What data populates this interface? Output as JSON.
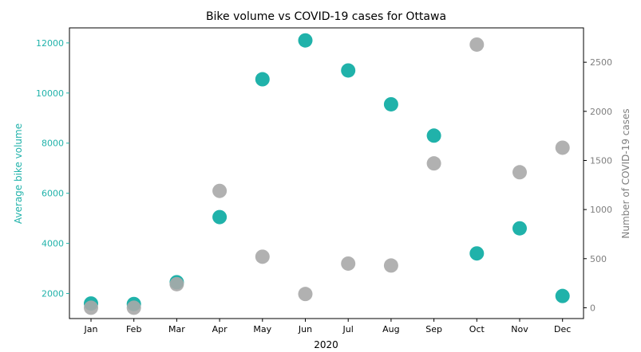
{
  "chart_data": {
    "type": "scatter",
    "title": "Bike volume vs COVID-19 cases for Ottawa",
    "xlabel": "2020",
    "categories": [
      "Jan",
      "Feb",
      "Mar",
      "Apr",
      "May",
      "Jun",
      "Jul",
      "Aug",
      "Sep",
      "Oct",
      "Nov",
      "Dec"
    ],
    "y_left": {
      "label": "Average bike volume",
      "color": "#20b2aa",
      "range": [
        1000,
        12600
      ],
      "ticks": [
        2000,
        4000,
        6000,
        8000,
        10000,
        12000
      ]
    },
    "y_right": {
      "label": "Number of COVID-19 cases",
      "color": "#7f7f7f",
      "range": [
        -110,
        2850
      ],
      "ticks": [
        0,
        500,
        1000,
        1500,
        2000,
        2500
      ]
    },
    "series": [
      {
        "axis": "left",
        "color": "#20b2aa",
        "values": [
          1600,
          1580,
          2450,
          5050,
          10550,
          12100,
          10900,
          9550,
          8300,
          3600,
          4600,
          1900
        ]
      },
      {
        "axis": "right",
        "color": "#a9a9a9",
        "values": [
          0,
          0,
          240,
          1190,
          520,
          140,
          450,
          430,
          1470,
          2680,
          1380,
          1630
        ]
      }
    ],
    "grid": false
  }
}
